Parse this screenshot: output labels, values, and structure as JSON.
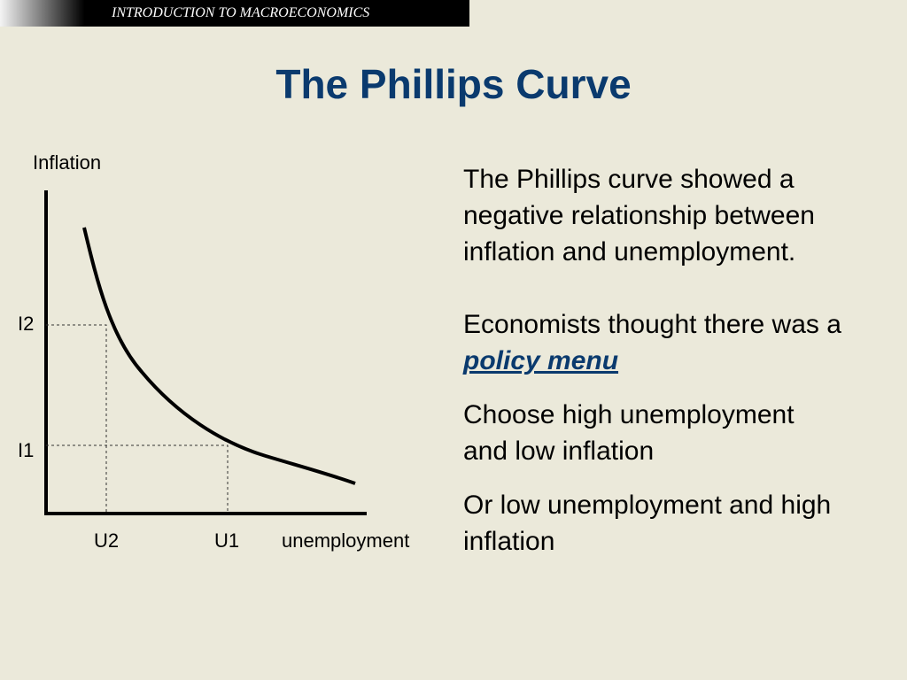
{
  "header": {
    "text": "INTRODUCTION TO MACROECONOMICS"
  },
  "title": "The Phillips Curve",
  "diagram": {
    "y_axis_label": "Inflation",
    "x_axis_label": "unemployment",
    "y_labels": [
      "I2",
      "I1"
    ],
    "x_labels": [
      "U2",
      "U1"
    ]
  },
  "paragraphs": [
    {
      "text": "The Phillips curve showed a negative relationship between inflation and unemployment."
    },
    {
      "text": "Economists thought there was a ",
      "emphasis": "policy menu"
    },
    {
      "text": "Choose high unemployment and low inflation"
    },
    {
      "text": "Or low unemployment and high inflation"
    }
  ]
}
